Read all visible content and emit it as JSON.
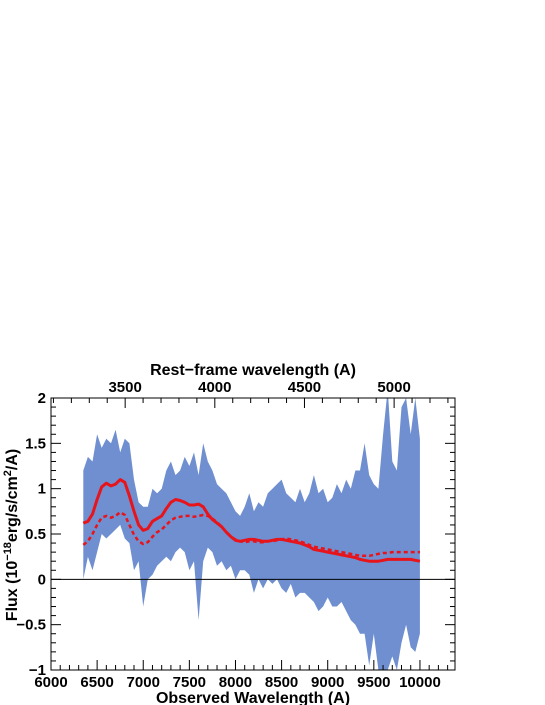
{
  "chart_data": {
    "type": "line",
    "title": "",
    "xlabel": "Observed Wavelength (A)",
    "top_xlabel": "Rest−frame wavelength (A)",
    "ylabel_parts": {
      "prefix": "Flux (10",
      "exp1": "−18",
      "mid": "erg/s/cm",
      "exp2": "2",
      "suffix": "/A)"
    },
    "xlim": [
      6000,
      10380
    ],
    "ylim": [
      -1,
      2
    ],
    "xticks": [
      6000,
      6500,
      7000,
      7500,
      8000,
      8500,
      9000,
      9500,
      10000
    ],
    "yticks": [
      -1,
      -0.5,
      0,
      0.5,
      1,
      1.5,
      2
    ],
    "ytick_labels": [
      "−1",
      "−0.5",
      "0",
      "0.5",
      "1",
      "1.5",
      "2"
    ],
    "rest_frame_ticks": [
      3500,
      4000,
      4500,
      5000
    ],
    "redshift": 0.944,
    "colors": {
      "spectrum": "#6f8fd0",
      "model": "#e8141c",
      "axis": "#000000"
    },
    "series": [
      {
        "kind": "band",
        "x": [
          6350,
          6400,
          6450,
          6500,
          6550,
          6600,
          6650,
          6700,
          6750,
          6800,
          6850,
          6900,
          6950,
          7000,
          7050,
          7100,
          7150,
          7200,
          7250,
          7300,
          7350,
          7400,
          7450,
          7500,
          7550,
          7600,
          7650,
          7700,
          7750,
          7800,
          7850,
          7900,
          7950,
          8000,
          8050,
          8100,
          8150,
          8200,
          8250,
          8300,
          8350,
          8400,
          8450,
          8500,
          8550,
          8600,
          8650,
          8700,
          8750,
          8800,
          8850,
          8900,
          8950,
          9000,
          9050,
          9100,
          9150,
          9200,
          9250,
          9300,
          9350,
          9400,
          9450,
          9500,
          9550,
          9600,
          9650,
          9700,
          9750,
          9800,
          9850,
          9900,
          9950,
          10000
        ],
        "upper": [
          1.2,
          1.35,
          1.3,
          1.6,
          1.45,
          1.55,
          1.5,
          1.65,
          1.4,
          1.55,
          1.5,
          1.1,
          0.85,
          0.8,
          0.8,
          1.0,
          0.95,
          1.0,
          1.2,
          1.3,
          1.15,
          1.2,
          1.35,
          1.25,
          1.4,
          1.15,
          1.5,
          1.3,
          1.2,
          1.05,
          1.0,
          0.95,
          0.85,
          0.75,
          0.7,
          0.8,
          0.95,
          0.75,
          0.85,
          0.8,
          0.95,
          1.0,
          1.05,
          1.1,
          0.95,
          0.9,
          0.85,
          1.0,
          0.85,
          0.95,
          1.15,
          0.95,
          1.0,
          0.85,
          0.9,
          1.05,
          0.95,
          1.1,
          1.0,
          1.2,
          1.2,
          1.5,
          1.15,
          1.05,
          1.0,
          1.6,
          2.1,
          1.3,
          1.2,
          1.9,
          2.0,
          1.6,
          2.0,
          1.55
        ],
        "lower": [
          0.0,
          0.25,
          0.1,
          0.3,
          0.5,
          0.45,
          0.5,
          0.55,
          0.6,
          0.45,
          0.4,
          0.1,
          0.2,
          -0.3,
          0.0,
          0.05,
          0.15,
          0.2,
          0.25,
          0.2,
          0.3,
          0.35,
          0.3,
          0.1,
          0.2,
          -0.45,
          0.2,
          0.35,
          0.3,
          0.15,
          0.2,
          0.1,
          0.15,
          0.0,
          0.1,
          0.1,
          0.05,
          -0.15,
          0.0,
          -0.1,
          0.0,
          -0.05,
          0.0,
          -0.1,
          -0.15,
          -0.05,
          -0.2,
          -0.15,
          -0.15,
          -0.2,
          -0.25,
          -0.35,
          -0.3,
          -0.2,
          -0.3,
          -0.3,
          -0.25,
          -0.35,
          -0.45,
          -0.5,
          -0.6,
          -0.6,
          -0.95,
          -0.6,
          -1.0,
          -1.0,
          -1.0,
          -0.85,
          -1.0,
          -0.7,
          -0.5,
          -0.75,
          -0.8,
          -0.6
        ]
      },
      {
        "kind": "solid",
        "x": [
          6350,
          6400,
          6450,
          6500,
          6550,
          6600,
          6650,
          6700,
          6750,
          6800,
          6850,
          6900,
          6950,
          7000,
          7050,
          7100,
          7150,
          7200,
          7250,
          7300,
          7350,
          7400,
          7450,
          7500,
          7550,
          7600,
          7650,
          7700,
          7750,
          7800,
          7850,
          7900,
          7950,
          8000,
          8050,
          8100,
          8150,
          8200,
          8250,
          8300,
          8350,
          8400,
          8450,
          8500,
          8550,
          8600,
          8650,
          8700,
          8750,
          8800,
          8850,
          8900,
          8950,
          9000,
          9050,
          9100,
          9150,
          9200,
          9250,
          9300,
          9350,
          9400,
          9450,
          9500,
          9550,
          9600,
          9650,
          9700,
          9750,
          9800,
          9850,
          9900,
          9950,
          10000
        ],
        "values": [
          0.62,
          0.64,
          0.72,
          0.88,
          1.02,
          1.06,
          1.03,
          1.05,
          1.1,
          1.07,
          0.92,
          0.75,
          0.6,
          0.54,
          0.56,
          0.64,
          0.67,
          0.7,
          0.78,
          0.85,
          0.88,
          0.87,
          0.85,
          0.82,
          0.82,
          0.83,
          0.8,
          0.72,
          0.66,
          0.62,
          0.58,
          0.52,
          0.47,
          0.43,
          0.42,
          0.43,
          0.44,
          0.44,
          0.43,
          0.42,
          0.42,
          0.43,
          0.44,
          0.44,
          0.43,
          0.42,
          0.41,
          0.4,
          0.38,
          0.36,
          0.33,
          0.32,
          0.31,
          0.3,
          0.29,
          0.28,
          0.27,
          0.26,
          0.25,
          0.24,
          0.22,
          0.21,
          0.2,
          0.2,
          0.2,
          0.21,
          0.22,
          0.22,
          0.22,
          0.22,
          0.22,
          0.22,
          0.21,
          0.2
        ]
      },
      {
        "kind": "dashed",
        "x": [
          6350,
          6400,
          6450,
          6500,
          6550,
          6600,
          6650,
          6700,
          6750,
          6800,
          6850,
          6900,
          6950,
          7000,
          7050,
          7100,
          7150,
          7200,
          7250,
          7300,
          7350,
          7400,
          7450,
          7500,
          7550,
          7600,
          7650,
          7700,
          7750,
          7800,
          7850,
          7900,
          7950,
          8000,
          8050,
          8100,
          8150,
          8200,
          8250,
          8300,
          8350,
          8400,
          8450,
          8500,
          8550,
          8600,
          8650,
          8700,
          8750,
          8800,
          8850,
          8900,
          8950,
          9000,
          9050,
          9100,
          9150,
          9200,
          9250,
          9300,
          9350,
          9400,
          9450,
          9500,
          9550,
          9600,
          9650,
          9700,
          9750,
          9800,
          9850,
          9900,
          9950,
          10000
        ],
        "values": [
          0.38,
          0.42,
          0.5,
          0.6,
          0.68,
          0.7,
          0.68,
          0.7,
          0.74,
          0.71,
          0.6,
          0.49,
          0.42,
          0.39,
          0.41,
          0.47,
          0.52,
          0.55,
          0.6,
          0.65,
          0.68,
          0.69,
          0.7,
          0.7,
          0.69,
          0.7,
          0.71,
          0.7,
          0.67,
          0.63,
          0.58,
          0.52,
          0.47,
          0.44,
          0.42,
          0.41,
          0.42,
          0.42,
          0.41,
          0.41,
          0.42,
          0.42,
          0.43,
          0.44,
          0.45,
          0.44,
          0.43,
          0.42,
          0.4,
          0.38,
          0.36,
          0.35,
          0.34,
          0.33,
          0.32,
          0.31,
          0.3,
          0.29,
          0.28,
          0.27,
          0.26,
          0.26,
          0.26,
          0.27,
          0.28,
          0.29,
          0.29,
          0.3,
          0.3,
          0.3,
          0.3,
          0.3,
          0.3,
          0.3
        ]
      }
    ]
  }
}
